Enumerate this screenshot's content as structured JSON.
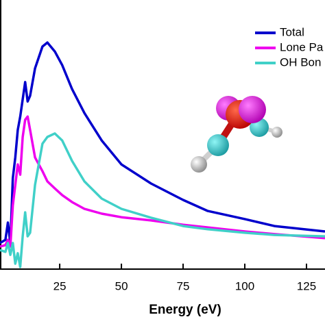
{
  "chart_data": {
    "type": "line",
    "x_label": "Energy (eV)",
    "x": [
      0.8,
      3,
      4,
      5,
      6,
      7,
      8,
      9,
      10,
      11,
      12,
      13,
      15,
      18,
      20,
      23,
      26,
      30,
      35,
      42,
      50,
      62,
      75,
      85,
      100,
      112,
      132.5
    ],
    "series": [
      {
        "name": "Total",
        "color": "#0000cc",
        "values": [
          9.7,
          10.9,
          17.3,
          9.7,
          33.8,
          41.5,
          51.7,
          56.7,
          63.1,
          69.5,
          62.3,
          64.4,
          74.6,
          82.7,
          84.2,
          80.9,
          75.8,
          66.9,
          58.0,
          47.8,
          38.9,
          31.8,
          25.7,
          21.6,
          18.6,
          16.0,
          14.0
        ]
      },
      {
        "name": "Lone Pa",
        "color": "#ee00ee",
        "values": [
          8.4,
          8.9,
          10.9,
          8.4,
          23.7,
          31.3,
          38.9,
          35.1,
          49.1,
          55.5,
          56.7,
          51.7,
          41.5,
          36.4,
          32.6,
          30.0,
          27.5,
          24.9,
          22.4,
          20.6,
          19.3,
          18.1,
          16.5,
          15.5,
          14.0,
          13.0,
          11.5
        ]
      },
      {
        "name": "OH Bon",
        "color": "#40d0c8",
        "values": [
          7.1,
          6.4,
          9.7,
          5.3,
          9.7,
          2.0,
          5.9,
          0.8,
          12.2,
          21.1,
          12.2,
          13.5,
          31.3,
          46.6,
          49.1,
          50.4,
          47.8,
          40.2,
          32.6,
          26.2,
          22.4,
          19.1,
          16.0,
          14.8,
          13.5,
          12.7,
          12.2
        ]
      }
    ],
    "xlim": [
      0.8,
      132.5
    ],
    "xticks": [
      25,
      50,
      75,
      100,
      125
    ],
    "ylim": [
      0,
      100
    ],
    "legend": "upper right"
  }
}
